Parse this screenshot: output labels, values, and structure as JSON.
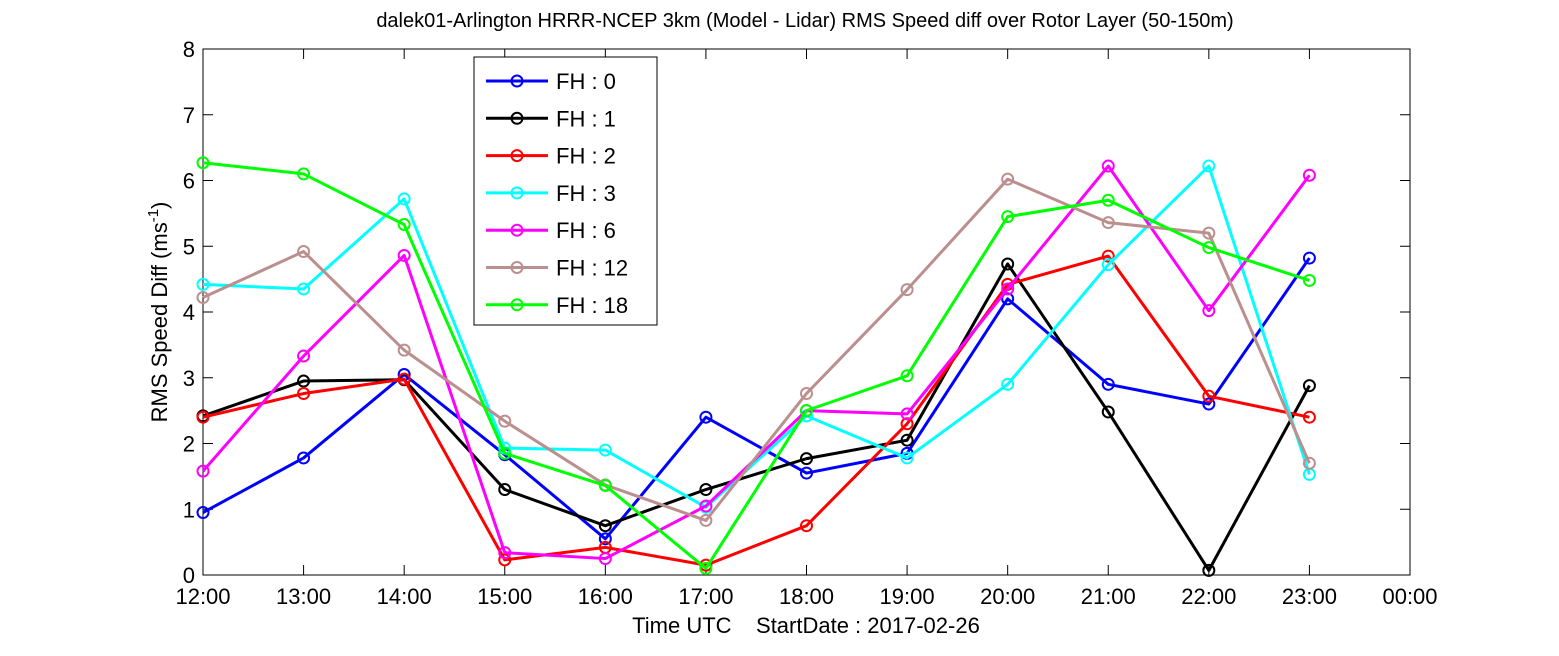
{
  "chart_data": {
    "type": "line",
    "title": "dalek01-Arlington HRRR-NCEP 3km (Model - Lidar) RMS Speed diff over Rotor Layer (50-150m)",
    "xlabel": "Time UTC    StartDate : 2017-02-26",
    "ylabel": {
      "main": "RMS Speed Diff (ms",
      "sup": "-1",
      "tail": ")"
    },
    "x": [
      "12:00",
      "13:00",
      "14:00",
      "15:00",
      "16:00",
      "17:00",
      "18:00",
      "19:00",
      "20:00",
      "21:00",
      "22:00",
      "23:00"
    ],
    "x_ticks": [
      "12:00",
      "13:00",
      "14:00",
      "15:00",
      "16:00",
      "17:00",
      "18:00",
      "19:00",
      "20:00",
      "21:00",
      "22:00",
      "23:00",
      "00:00"
    ],
    "ylim": [
      0,
      8
    ],
    "y_ticks": [
      "0",
      "1",
      "2",
      "3",
      "4",
      "5",
      "6",
      "7",
      "8"
    ],
    "legend_position": "top-left",
    "grid": false,
    "series": [
      {
        "name": "FH : 0",
        "color": "#0000ff",
        "values": [
          0.95,
          1.78,
          3.05,
          1.83,
          0.55,
          2.4,
          1.55,
          1.85,
          4.2,
          2.9,
          2.6,
          4.82
        ]
      },
      {
        "name": "FH : 1",
        "color": "#000000",
        "values": [
          2.42,
          2.95,
          2.97,
          1.3,
          0.75,
          1.3,
          1.77,
          2.05,
          4.73,
          2.48,
          0.07,
          2.88
        ]
      },
      {
        "name": "FH : 2",
        "color": "#ff0000",
        "values": [
          2.4,
          2.76,
          2.98,
          0.23,
          0.42,
          0.15,
          0.75,
          2.3,
          4.42,
          4.85,
          2.72,
          2.4
        ]
      },
      {
        "name": "FH : 3",
        "color": "#00ffff",
        "values": [
          4.42,
          4.35,
          5.72,
          1.93,
          1.9,
          1.03,
          2.42,
          1.78,
          2.9,
          4.72,
          6.22,
          1.53
        ]
      },
      {
        "name": "FH : 6",
        "color": "#ff00ff",
        "values": [
          1.58,
          3.33,
          4.86,
          0.34,
          0.25,
          1.05,
          2.5,
          2.45,
          4.35,
          6.22,
          4.02,
          6.08
        ]
      },
      {
        "name": "FH : 12",
        "color": "#bc8f8f",
        "values": [
          4.22,
          4.92,
          3.42,
          2.34,
          1.37,
          0.83,
          2.76,
          4.34,
          6.02,
          5.36,
          5.2,
          1.7
        ]
      },
      {
        "name": "FH : 18",
        "color": "#00ff00",
        "values": [
          6.27,
          6.1,
          5.33,
          1.85,
          1.36,
          0.1,
          2.5,
          3.03,
          5.45,
          5.7,
          4.98,
          4.48
        ]
      }
    ]
  }
}
